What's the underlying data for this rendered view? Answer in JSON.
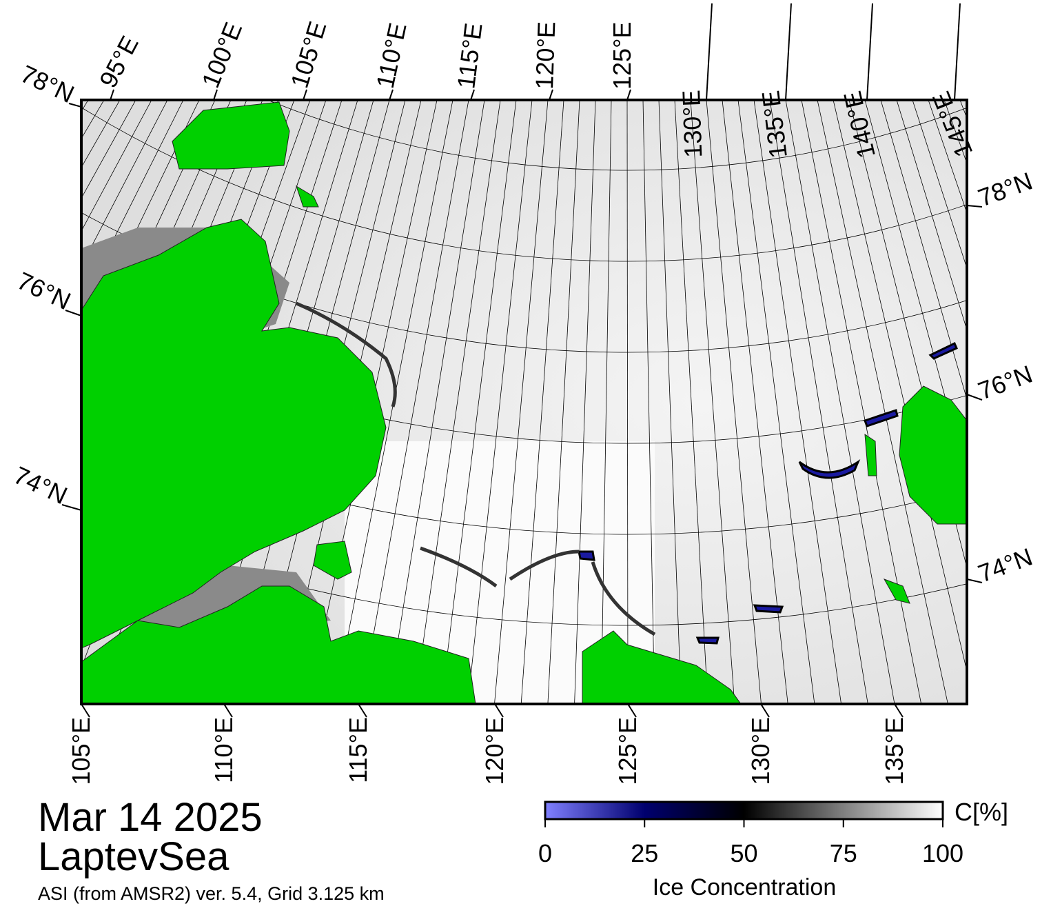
{
  "map": {
    "title": "Mar 14 2025",
    "region": "LaptevSea",
    "source": "ASI (from AMSR2) ver. 5.4,  Grid 3.125 km",
    "top_labels": [
      "95°E",
      "100°E",
      "105°E",
      "110°E",
      "115°E",
      "120°E",
      "125°E",
      "130°E",
      "135°E",
      "140°E",
      "145°E"
    ],
    "bottom_labels": [
      "105°E",
      "110°E",
      "115°E",
      "120°E",
      "125°E",
      "130°E",
      "135°E"
    ],
    "left_labels": [
      "78°N",
      "76°N",
      "74°N"
    ],
    "right_labels": [
      "78°N",
      "76°N",
      "74°N"
    ]
  },
  "colorbar": {
    "label": "Ice Concentration",
    "unit": "C[%]",
    "range": [
      0,
      100
    ],
    "ticks": [
      0,
      25,
      50,
      75,
      100
    ]
  }
}
